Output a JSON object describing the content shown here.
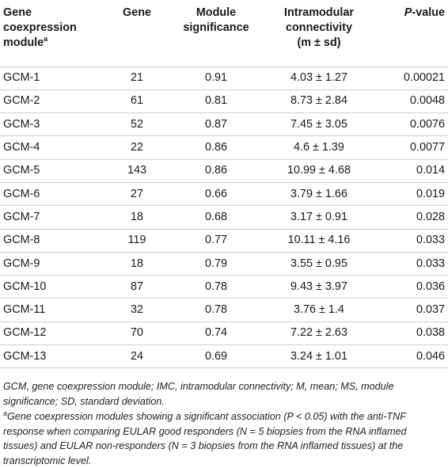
{
  "table": {
    "headers": {
      "col1": "Gene coexpression module",
      "col1_sup": "a",
      "col2": "Gene",
      "col3": "Module significance",
      "col4_line1": "Intramodular connectivity",
      "col4_line2": "(m ± sd)",
      "col5_italic": "P",
      "col5_rest": "-value"
    },
    "rows": [
      {
        "module": "GCM-1",
        "gene": "21",
        "significance": "0.91",
        "connectivity": "4.03 ± 1.27",
        "pvalue": "0.00021"
      },
      {
        "module": "GCM-2",
        "gene": "61",
        "significance": "0.81",
        "connectivity": "8.73 ± 2.84",
        "pvalue": "0.0048"
      },
      {
        "module": "GCM-3",
        "gene": "52",
        "significance": "0.87",
        "connectivity": "7.45 ± 3.05",
        "pvalue": "0.0076"
      },
      {
        "module": "GCM-4",
        "gene": "22",
        "significance": "0.86",
        "connectivity": "4.6 ± 1.39",
        "pvalue": "0.0077"
      },
      {
        "module": "GCM-5",
        "gene": "143",
        "significance": "0.86",
        "connectivity": "10.99 ± 4.68",
        "pvalue": "0.014"
      },
      {
        "module": "GCM-6",
        "gene": "27",
        "significance": "0.66",
        "connectivity": "3.79 ± 1.66",
        "pvalue": "0.019"
      },
      {
        "module": "GCM-7",
        "gene": "18",
        "significance": "0.68",
        "connectivity": "3.17 ± 0.91",
        "pvalue": "0.028"
      },
      {
        "module": "GCM-8",
        "gene": "119",
        "significance": "0.77",
        "connectivity": "10.11 ± 4.16",
        "pvalue": "0.033"
      },
      {
        "module": "GCM-9",
        "gene": "18",
        "significance": "0.79",
        "connectivity": "3.55 ± 0.95",
        "pvalue": "0.033"
      },
      {
        "module": "GCM-10",
        "gene": "87",
        "significance": "0.78",
        "connectivity": "9.43 ± 3.97",
        "pvalue": "0.036"
      },
      {
        "module": "GCM-11",
        "gene": "32",
        "significance": "0.78",
        "connectivity": "3.76 ± 1.4",
        "pvalue": "0.037"
      },
      {
        "module": "GCM-12",
        "gene": "70",
        "significance": "0.74",
        "connectivity": "7.22 ± 2.63",
        "pvalue": "0.038"
      },
      {
        "module": "GCM-13",
        "gene": "24",
        "significance": "0.69",
        "connectivity": "3.24 ± 1.01",
        "pvalue": "0.046"
      }
    ]
  },
  "notes": {
    "abbreviations": "GCM, gene coexpression module; IMC, intramodular connectivity; M, mean; MS, module significance; SD, standard deviation.",
    "footnote_marker": "a",
    "footnote": "Gene coexpression modules showing a significant association (P < 0.05) with the anti-TNF response when comparing EULAR good responders (N = 5 biopsies from the RNA inflamed tissues) and EULAR non-responders (N = 3 biopsies from the RNA inflamed tissues) at the transcriptomic level."
  }
}
